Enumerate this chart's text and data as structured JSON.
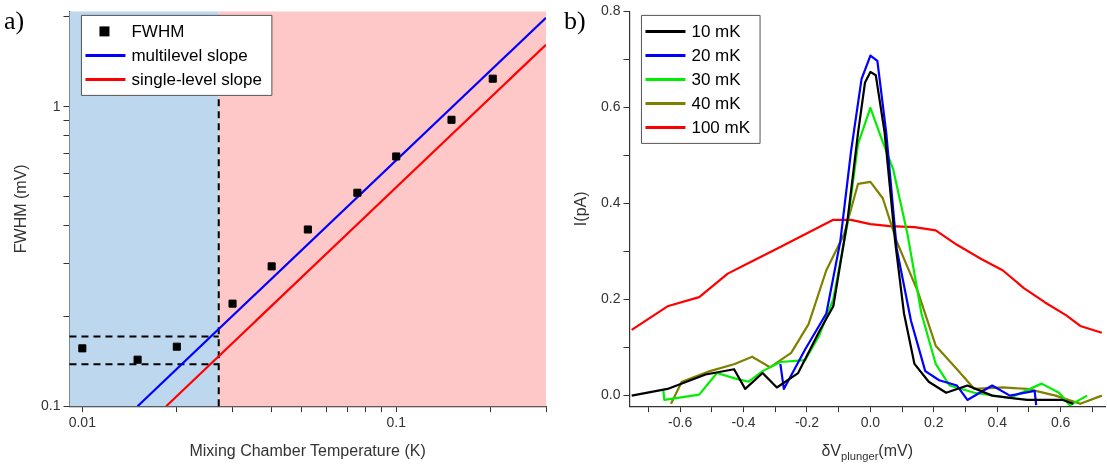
{
  "chart_data": [
    {
      "type": "scatter",
      "title": "a)",
      "xlabel": "Mixing Chamber Temperature (K)",
      "ylabel": "FWHM (mV)",
      "log": "xy",
      "grid": false,
      "legend": "top left",
      "xlim": [
        0.0091,
        0.3
      ],
      "ylim": [
        0.1,
        2.08
      ],
      "xticks": [
        0.01,
        {
          "value": 0.02,
          "label": null
        },
        {
          "value": 0.03,
          "label": null
        },
        {
          "value": 0.04,
          "label": null
        },
        {
          "value": 0.05,
          "label": null
        },
        {
          "value": 0.06,
          "label": null
        },
        {
          "value": 0.07,
          "label": null
        },
        {
          "value": 0.08,
          "label": null
        },
        {
          "value": 0.09,
          "label": null
        },
        0.1,
        {
          "value": 0.2,
          "label": null
        },
        {
          "value": 0.3,
          "label": null
        }
      ],
      "yticks": [
        0.1,
        {
          "value": 0.2,
          "label": null
        },
        {
          "value": 0.3,
          "label": null
        },
        {
          "value": 0.4,
          "label": null
        },
        {
          "value": 0.5,
          "label": null
        },
        {
          "value": 0.6,
          "label": null
        },
        {
          "value": 0.7,
          "label": null
        },
        {
          "value": 0.8,
          "label": null
        },
        {
          "value": 0.9,
          "label": null
        },
        1,
        {
          "value": 2,
          "label": null
        }
      ],
      "bands": [
        {
          "axis": "x",
          "from": 0.0091,
          "to": 0.0272,
          "color": "#bdd7ee"
        },
        {
          "axis": "x",
          "from": 0.0272,
          "to": 0.3,
          "color": "#ffc8c8"
        }
      ],
      "ref_lines": [
        {
          "axis": "x",
          "value": 0.0272,
          "color": "#000000",
          "line_style": "dashed"
        },
        {
          "axis": "y",
          "value": 0.171,
          "color": "#000000",
          "line_style": "dashed"
        },
        {
          "axis": "y",
          "value": 0.138,
          "color": "#000000",
          "line_style": "dashed"
        }
      ],
      "series": [
        {
          "name": "FWHM",
          "marker": "square",
          "color": "#000000",
          "x": [
            0.01,
            0.015,
            0.02,
            0.0301,
            0.0401,
            0.0523,
            0.0752,
            0.1,
            0.15,
            0.203
          ],
          "values": [
            0.156,
            0.143,
            0.158,
            0.22,
            0.293,
            0.389,
            0.516,
            0.682,
            0.904,
            1.24
          ]
        },
        {
          "name": "multilevel slope",
          "type": "line",
          "marker": "none",
          "color": "#0000ff",
          "x": [
            0.015,
            0.3
          ],
          "values": [
            0.1,
            1.98
          ]
        },
        {
          "name": "single-level slope",
          "type": "line",
          "marker": "none",
          "color": "#ff0000",
          "x": [
            0.0185,
            0.3
          ],
          "values": [
            0.1,
            1.61
          ]
        }
      ]
    },
    {
      "type": "line",
      "title": "b)",
      "xlabel": "δV$_{plunger}$(mV)",
      "ylabel": "I(pA)",
      "grid": false,
      "legend": "top left",
      "marker": "none",
      "xlim": [
        -0.76,
        0.74
      ],
      "ylim": [
        -0.022,
        0.8
      ],
      "xticks": [
        {
          "value": -0.7,
          "label": null
        },
        -0.6,
        {
          "value": -0.5,
          "label": null
        },
        -0.4,
        {
          "value": -0.3,
          "label": null
        },
        -0.2,
        {
          "value": -0.1,
          "label": null
        },
        {
          "value": 0,
          "label": "0.0"
        },
        {
          "value": 0.1,
          "label": null
        },
        0.2,
        {
          "value": 0.3,
          "label": null
        },
        0.4,
        {
          "value": 0.5,
          "label": null
        },
        0.6,
        {
          "value": 0.7,
          "label": null
        }
      ],
      "yticks": [
        {
          "value": 0,
          "label": "0.0"
        },
        {
          "value": 0.1,
          "label": null
        },
        0.2,
        {
          "value": 0.3,
          "label": null
        },
        0.4,
        {
          "value": 0.5,
          "label": null
        },
        0.6,
        {
          "value": 0.7,
          "label": null
        },
        0.8
      ],
      "series": [
        {
          "name": "10 mK",
          "color": "#000000",
          "x": [
            -0.753,
            -0.64,
            -0.52,
            -0.43,
            -0.395,
            -0.34,
            -0.295,
            -0.228,
            -0.161,
            -0.117,
            -0.072,
            -0.039,
            -0.017,
            0,
            0.017,
            0.045,
            0.078,
            0.106,
            0.139,
            0.184,
            0.239,
            0.306,
            0.384,
            0.495,
            0.607,
            0.64
          ],
          "values": [
            0,
            0.014,
            0.044,
            0.055,
            0.014,
            0.047,
            0.017,
            0.047,
            0.134,
            0.186,
            0.366,
            0.547,
            0.652,
            0.674,
            0.667,
            0.547,
            0.321,
            0.171,
            0.066,
            0.029,
            0.006,
            0.021,
            0,
            -0.009,
            -0.009,
            -0.017
          ]
        },
        {
          "name": "20 mK",
          "color": "#0000ff",
          "x": [
            -0.284,
            -0.273,
            -0.206,
            -0.139,
            -0.095,
            -0.061,
            -0.028,
            0,
            0.022,
            0.05,
            0.083,
            0.128,
            0.173,
            0.217,
            0.273,
            0.306,
            0.384,
            0.44,
            0.518,
            0.523
          ],
          "values": [
            0.066,
            0.014,
            0.096,
            0.171,
            0.321,
            0.509,
            0.659,
            0.708,
            0.697,
            0.547,
            0.306,
            0.156,
            0.051,
            0.032,
            0.021,
            -0.009,
            0.021,
            0,
            0.01,
            -0.02
          ]
        },
        {
          "name": "30 mK",
          "color": "#00ee00",
          "x": [
            -0.653,
            -0.65,
            -0.54,
            -0.484,
            -0.428,
            -0.384,
            -0.34,
            -0.284,
            -0.206,
            -0.161,
            -0.117,
            -0.072,
            -0.039,
            0,
            0.033,
            0.072,
            0.117,
            0.161,
            0.206,
            0.25,
            0.328,
            0.44,
            0.54,
            0.595,
            0.629,
            0.684
          ],
          "values": [
            0.01,
            -0.009,
            0.002,
            0.047,
            0.036,
            0.029,
            0.051,
            0.07,
            0.074,
            0.126,
            0.201,
            0.359,
            0.524,
            0.599,
            0.539,
            0.471,
            0.336,
            0.171,
            0.066,
            0.021,
            0.006,
            -0.005,
            0.025,
            0.006,
            -0.02,
            0
          ]
        },
        {
          "name": "40 mK",
          "color": "#808000",
          "x": [
            -0.629,
            -0.595,
            -0.506,
            -0.428,
            -0.373,
            -0.317,
            -0.25,
            -0.195,
            -0.139,
            -0.083,
            -0.039,
            0,
            0.039,
            0.083,
            0.15,
            0.206,
            0.273,
            0.328,
            0.417,
            0.495,
            0.584,
            0.662,
            0.73
          ],
          "values": [
            -0.017,
            0.029,
            0.051,
            0.066,
            0.081,
            0.059,
            0.089,
            0.149,
            0.261,
            0.336,
            0.441,
            0.445,
            0.411,
            0.321,
            0.216,
            0.104,
            0.055,
            0.014,
            0.017,
            0.014,
            0,
            -0.017,
            0
          ]
        },
        {
          "name": "100 mK",
          "color": "#ff0000",
          "x": [
            -0.753,
            -0.64,
            -0.54,
            -0.45,
            -0.384,
            -0.295,
            -0.206,
            -0.117,
            -0.061,
            0,
            0.061,
            0.139,
            0.206,
            0.273,
            0.351,
            0.417,
            0.484,
            0.551,
            0.618,
            0.662,
            0.73
          ],
          "values": [
            0.137,
            0.186,
            0.205,
            0.254,
            0.276,
            0.306,
            0.336,
            0.366,
            0.366,
            0.357,
            0.353,
            0.351,
            0.344,
            0.314,
            0.284,
            0.261,
            0.224,
            0.194,
            0.167,
            0.145,
            0.131
          ]
        }
      ]
    }
  ]
}
